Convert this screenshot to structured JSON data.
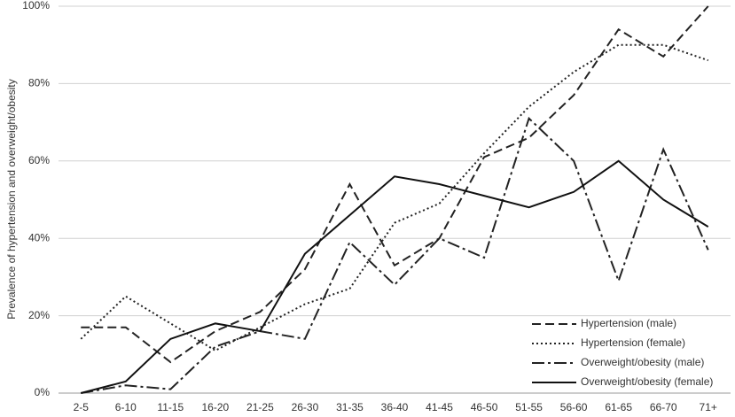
{
  "chart_data": {
    "type": "line",
    "y_label": "Prevalence of hypertension and overweight/obesity",
    "categories": [
      "2-5",
      "6-10",
      "11-15",
      "16-20",
      "21-25",
      "26-30",
      "31-35",
      "36-40",
      "41-45",
      "46-50",
      "51-55",
      "56-60",
      "61-65",
      "66-70",
      "71+"
    ],
    "series": [
      {
        "name": "Hypertension (male)",
        "color": "#222222",
        "dash": "10,5",
        "values": [
          17,
          17,
          8,
          16,
          21,
          32,
          54,
          33,
          40,
          61,
          66,
          77,
          94,
          87,
          100
        ]
      },
      {
        "name": "Hypertension (female)",
        "color": "#222222",
        "dash": "2,3",
        "values": [
          14,
          25,
          18,
          11,
          17,
          23,
          27,
          44,
          49,
          62,
          74,
          83,
          90,
          90,
          86
        ]
      },
      {
        "name": "Overweight/obesity (male)",
        "color": "#222222",
        "dash": "14,4,3,4",
        "values": [
          0,
          2,
          1,
          12,
          16,
          14,
          39,
          28,
          40,
          35,
          71,
          60,
          29,
          63,
          37
        ]
      },
      {
        "name": "Overweight/obesity (female)",
        "color": "#111111",
        "dash": "none",
        "values": [
          0,
          3,
          14,
          18,
          16,
          36,
          46,
          56,
          54,
          51,
          48,
          52,
          60,
          50,
          43
        ]
      }
    ],
    "ylim": [
      0,
      100
    ],
    "yticks": [
      {
        "value": 0,
        "label": "0%"
      },
      {
        "value": 20,
        "label": "20%"
      },
      {
        "value": 40,
        "label": "40%"
      },
      {
        "value": 60,
        "label": "60%"
      },
      {
        "value": 80,
        "label": "80%"
      },
      {
        "value": 100,
        "label": "100%"
      }
    ],
    "grid": true,
    "legend": "bottom-right"
  }
}
